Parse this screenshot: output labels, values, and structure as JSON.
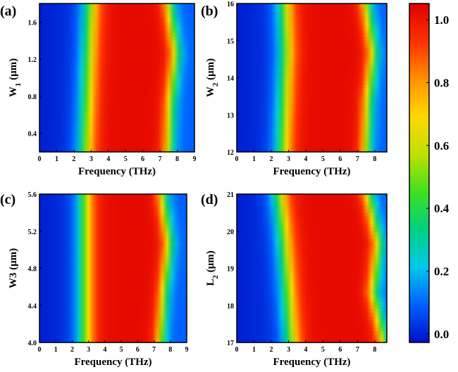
{
  "chart_data": [
    {
      "type": "heatmap",
      "panel_label": "(a)",
      "xlabel": "Frequency (THz)",
      "ylabel_main": "W",
      "ylabel_sub": "1",
      "ylabel_unit": " (μm)",
      "x_ticks": [
        "0",
        "1",
        "2",
        "3",
        "4",
        "5",
        "6",
        "7",
        "8",
        "9"
      ],
      "xlim": [
        0,
        9
      ],
      "y_ticks": [
        "0.4",
        "0.8",
        "1.2",
        "1.6"
      ],
      "ylim": [
        0.2,
        1.8
      ],
      "band_low_edge_thz": [
        2.7,
        2.8,
        2.9,
        3.0
      ],
      "band_high_edge_thz": [
        7.5,
        7.6,
        7.9,
        7.5
      ]
    },
    {
      "type": "heatmap",
      "panel_label": "(b)",
      "xlabel": "Frequency (THz)",
      "ylabel_main": "W",
      "ylabel_sub": "2",
      "ylabel_unit": " (μm)",
      "x_ticks": [
        "0",
        "1",
        "2",
        "3",
        "4",
        "5",
        "6",
        "7",
        "8"
      ],
      "xlim": [
        0,
        8.7
      ],
      "y_ticks": [
        "12",
        "13",
        "14",
        "15",
        "16"
      ],
      "ylim": [
        12,
        16
      ],
      "band_low_edge_thz": [
        2.7,
        2.8,
        2.9,
        2.8
      ],
      "band_high_edge_thz": [
        7.5,
        7.6,
        7.9,
        7.5
      ]
    },
    {
      "type": "heatmap",
      "panel_label": "(c)",
      "xlabel": "Frequency (THz)",
      "ylabel_main": "W3",
      "ylabel_sub": "",
      "ylabel_unit": " (μm)",
      "x_ticks": [
        "0",
        "1",
        "2",
        "3",
        "4",
        "5",
        "6",
        "7",
        "8",
        "9"
      ],
      "xlim": [
        0,
        9
      ],
      "y_ticks": [
        "4.0",
        "4.4",
        "4.8",
        "5.2",
        "5.6"
      ],
      "ylim": [
        4.0,
        5.6
      ],
      "band_low_edge_thz": [
        2.8,
        2.8,
        2.8,
        2.8
      ],
      "band_high_edge_thz": [
        7.4,
        7.6,
        7.9,
        7.5
      ]
    },
    {
      "type": "heatmap",
      "panel_label": "(d)",
      "xlabel": "Frequency (THz)",
      "ylabel_main": "L",
      "ylabel_sub": "2",
      "ylabel_unit": " (μm)",
      "x_ticks": [
        "0",
        "1",
        "2",
        "3",
        "4",
        "5",
        "6",
        "7",
        "8"
      ],
      "xlim": [
        0,
        8.7
      ],
      "y_ticks": [
        "17",
        "18",
        "19",
        "20",
        "21"
      ],
      "ylim": [
        17,
        21
      ],
      "band_low_edge_thz": [
        3.2,
        3.0,
        2.8,
        2.5
      ],
      "band_high_edge_thz": [
        8.5,
        7.9,
        8.2,
        7.6
      ]
    }
  ],
  "colorbar": {
    "ticks": [
      "0.0",
      "0.2",
      "0.4",
      "0.6",
      "0.8",
      "1.0"
    ],
    "range": [
      0,
      1
    ],
    "colors": [
      "#0010c8",
      "#0060ff",
      "#00c8e8",
      "#00d080",
      "#40e020",
      "#c0e000",
      "#ffd800",
      "#ff9000",
      "#ff3000",
      "#e00000"
    ]
  }
}
